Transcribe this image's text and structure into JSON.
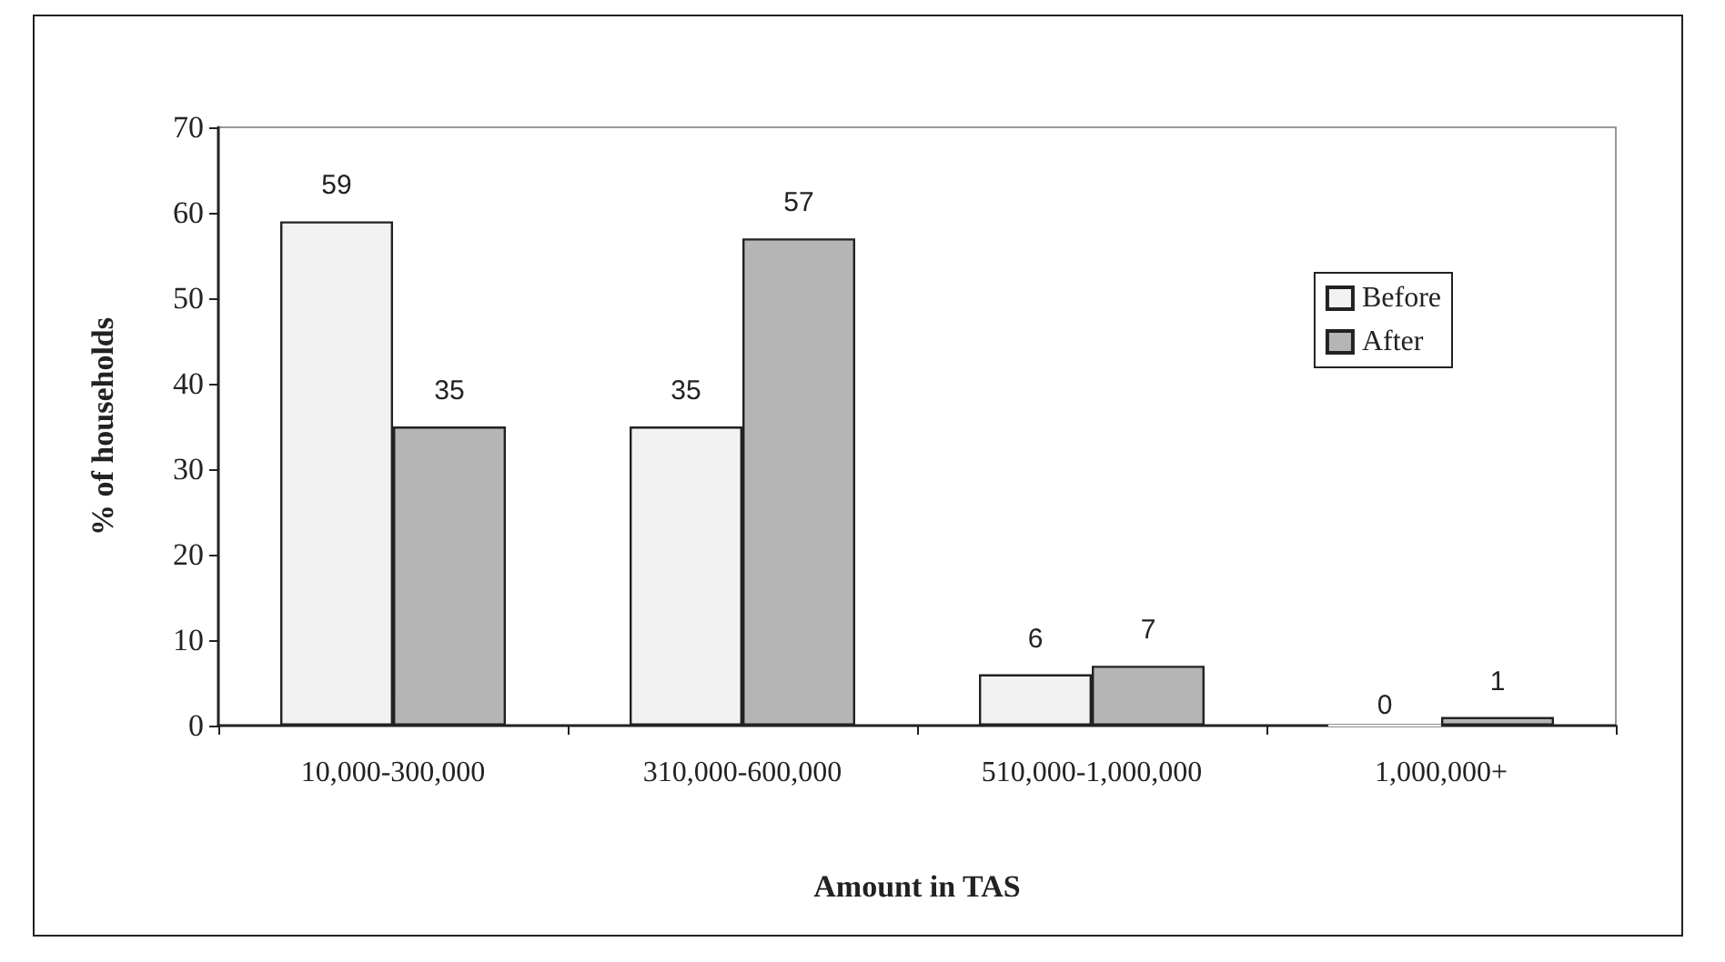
{
  "chart_data": {
    "type": "bar",
    "xlabel": "Amount in TAS",
    "ylabel": "% of households",
    "categories": [
      "10,000-300,000",
      "310,000-600,000",
      "510,000-1,000,000",
      "1,000,000+"
    ],
    "series": [
      {
        "name": "Before",
        "color": "#f2f2f2",
        "values": [
          59,
          35,
          6,
          0
        ]
      },
      {
        "name": "After",
        "color": "#b5b5b5",
        "values": [
          35,
          57,
          7,
          1
        ]
      }
    ],
    "ylim": [
      0,
      70
    ],
    "yticks": [
      0,
      10,
      20,
      30,
      40,
      50,
      60,
      70
    ],
    "grid": false,
    "legend": "right",
    "data_labels": true
  }
}
